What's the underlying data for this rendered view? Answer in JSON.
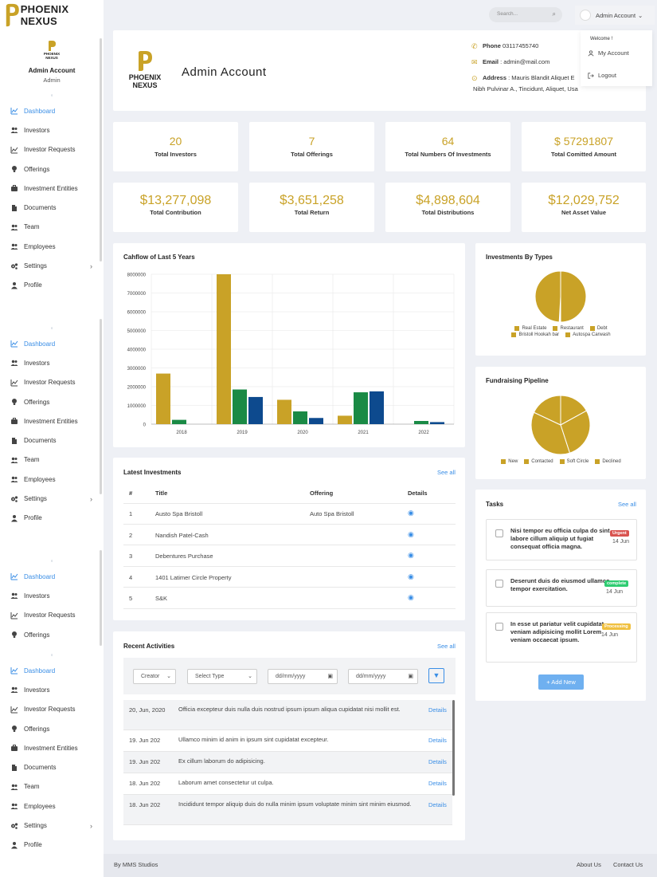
{
  "brand": {
    "name": "PHOENIX NEXUS",
    "logo_line1": "PHOENIX",
    "logo_line2": "NEXUS"
  },
  "profile": {
    "name": "Admin Account",
    "role": "Admin"
  },
  "sidebar": {
    "items": [
      {
        "label": "Dashboard",
        "icon": "chart-line-icon"
      },
      {
        "label": "Investors",
        "icon": "users-icon"
      },
      {
        "label": "Investor Requests",
        "icon": "chart-line-icon"
      },
      {
        "label": "Offerings",
        "icon": "lightbulb-icon"
      },
      {
        "label": "Investment Entities",
        "icon": "briefcase-icon"
      },
      {
        "label": "Documents",
        "icon": "document-icon"
      },
      {
        "label": "Team",
        "icon": "users-icon"
      },
      {
        "label": "Employees",
        "icon": "users-icon"
      },
      {
        "label": "Settings",
        "icon": "gears-icon"
      },
      {
        "label": "Profile",
        "icon": "user-icon"
      }
    ]
  },
  "topbar": {
    "search_placeholder": "Search...",
    "account_label": "Admin Account",
    "dropdown": {
      "welcome": "Welcome !",
      "my_account": "My Account",
      "logout": "Logout"
    }
  },
  "header": {
    "title": "Admin Account",
    "phone_label": "Phone",
    "phone": "03117455740",
    "email_label": "Email",
    "email": ": admin@mail.com",
    "address_label": "Address",
    "address_line1": ": Mauris Blandit Aliquet E",
    "address_line2": "Nibh Pulvinar A., Tincidunt, Aliquet, Usa"
  },
  "stats_row1": [
    {
      "value": "20",
      "label": "Total Investors"
    },
    {
      "value": "7",
      "label": "Total Offerings"
    },
    {
      "value": "64",
      "label": "Total Numbers Of Investments"
    },
    {
      "value": "57291807",
      "currency": "$",
      "label": "Total Comitted Amount"
    }
  ],
  "stats_row2": [
    {
      "currency": "$",
      "value": "13,277,098",
      "label": "Total Contribution"
    },
    {
      "currency": "$",
      "value": "3,651,258",
      "label": "Total Return"
    },
    {
      "currency": "$",
      "value": "4,898,604",
      "label": "Total Distributions"
    },
    {
      "currency": "$",
      "value": "12,029,752",
      "label": "Net Asset Value"
    }
  ],
  "colors": {
    "gold": "#c9a227",
    "green": "#1a8a45",
    "blue": "#0d4a8e",
    "link": "#3a8ee6"
  },
  "chart_data": [
    {
      "type": "bar",
      "title": "Cahflow of Last 5 Years",
      "categories": [
        "2018",
        "2019",
        "2020",
        "2021",
        "2022"
      ],
      "series": [
        {
          "values": [
            2700000,
            8000000,
            1300000,
            450000,
            0
          ],
          "color": "#c9a227"
        },
        {
          "values": [
            230000,
            1850000,
            680000,
            1700000,
            170000
          ],
          "color": "#1a8a45"
        },
        {
          "values": [
            0,
            1450000,
            330000,
            1750000,
            110000
          ],
          "color": "#0d4a8e"
        }
      ],
      "y_ticks": [
        "0",
        "1000000",
        "2000000",
        "3000000",
        "4000000",
        "5000000",
        "6000000",
        "7000000",
        "8000000"
      ],
      "ylim": [
        0,
        8000000
      ],
      "grid": true
    },
    {
      "type": "pie",
      "title": "Investments By Types",
      "labels": [
        "Real Estate",
        "Restaurant",
        "Debt",
        "Bristoll Hookah bar",
        "Autospa Carwash"
      ],
      "values": [
        50,
        0.3,
        0.3,
        0.3,
        49.1
      ],
      "color": "#c9a227"
    },
    {
      "type": "pie",
      "title": "Fundraising Pipeline",
      "labels": [
        "New",
        "Contacted",
        "Soft Circle",
        "Declined"
      ],
      "values": [
        17,
        28,
        37,
        18
      ],
      "color": "#c9a227"
    }
  ],
  "latest_investments": {
    "title": "Latest Investments",
    "see_all": "See all",
    "headers": [
      "#",
      "Title",
      "Offering",
      "Details"
    ],
    "rows": [
      {
        "n": "1",
        "title": "Austo Spa Bristoll",
        "offering": "Auto Spa Bristoll"
      },
      {
        "n": "2",
        "title": "Nandish Patel-Cash",
        "offering": ""
      },
      {
        "n": "3",
        "title": "Debentures Purchase",
        "offering": ""
      },
      {
        "n": "4",
        "title": "1401 Latimer Circle Property",
        "offering": ""
      },
      {
        "n": "5",
        "title": "S&K",
        "offering": ""
      }
    ]
  },
  "recent_activities": {
    "title": "Recent Activities",
    "see_all": "See all",
    "filters": {
      "creator": "Creator",
      "type": "Select Type",
      "date1": "dd/mm/yyyy",
      "date2": "dd/mm/yyyy"
    },
    "rows": [
      {
        "date": "20, Jun, 2020",
        "text": "Officia excepteur duis nulla duis nostrud ipsum ipsum aliqua cupidatat nisi mollit est.",
        "link": "Details"
      },
      {
        "date": "19. Jun 202",
        "text": "Ullamco minim id anim in ipsum sint cupidatat excepteur.",
        "link": "Details"
      },
      {
        "date": "19. Jun 202",
        "text": "Ex cillum laborum do adipisicing.",
        "link": "Details"
      },
      {
        "date": "18. Jun 202",
        "text": "Laborum amet consectetur ut culpa.",
        "link": "Details"
      },
      {
        "date": "18. Jun 202",
        "text": "Incididunt tempor aliquip duis do nulla minim ipsum voluptate minim sint minim eiusmod.",
        "link": "Details"
      }
    ]
  },
  "tasks": {
    "title": "Tasks",
    "see_all": "See all",
    "items": [
      {
        "text": "Nisi tempor eu officia culpa do sint labore cillum aliquip ut fugiat consequat officia magna.",
        "badge": "Urgent",
        "badge_color": "#d9534f",
        "date": "14 Jun"
      },
      {
        "text": "Deserunt duis do eiusmod ullamco tempor exercitation.",
        "badge": "complete",
        "badge_color": "#2ecc71",
        "date": "14 Jun"
      },
      {
        "text": "In esse ut pariatur velit cupidatat veniam adipisicing mollit Lorem veniam occaecat ipsum.",
        "badge": "Processing",
        "badge_color": "#f0c040",
        "date": "14 Jun"
      }
    ],
    "add_new": "+ Add New"
  },
  "footer": {
    "credit": "By MMS Studios",
    "about": "About Us",
    "contact": "Contact Us"
  }
}
